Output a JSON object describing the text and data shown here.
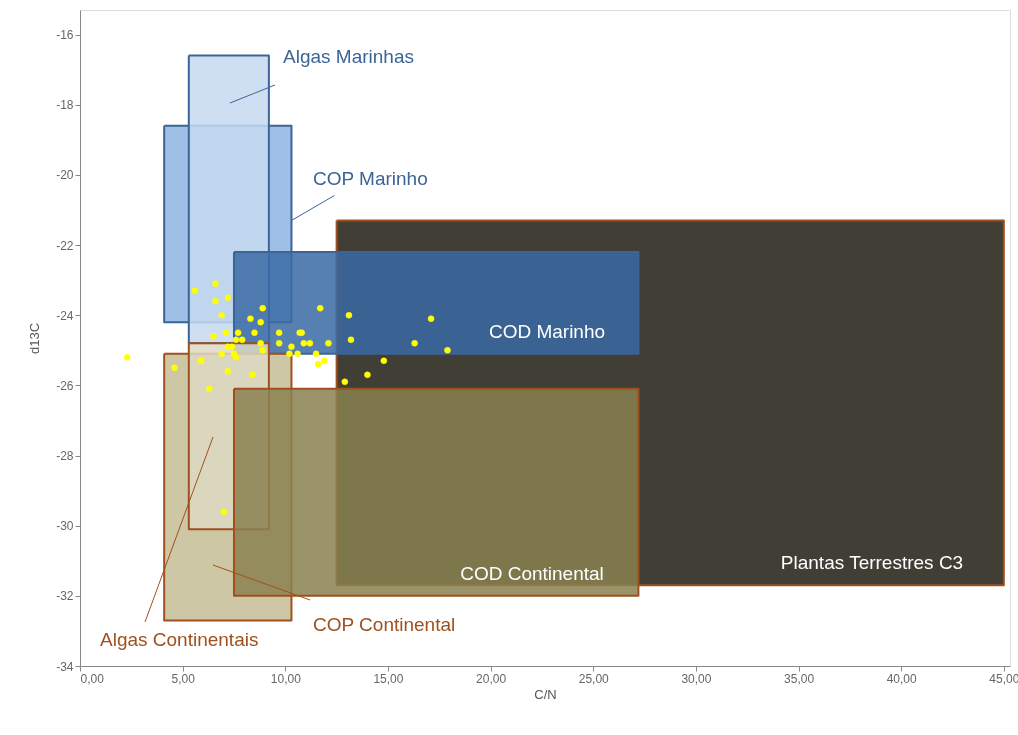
{
  "chart_data": {
    "type": "area",
    "xlabel": "C/N",
    "ylabel": "d13C",
    "xlim": [
      0,
      45.3
    ],
    "ylim": [
      -34,
      -15.3
    ],
    "xticks": [
      {
        "value": 0,
        "label": "0,00"
      },
      {
        "value": 5,
        "label": "5,00"
      },
      {
        "value": 10,
        "label": "10,00"
      },
      {
        "value": 15,
        "label": "15,00"
      },
      {
        "value": 20,
        "label": "20,00"
      },
      {
        "value": 25,
        "label": "25,00"
      },
      {
        "value": 30,
        "label": "30,00"
      },
      {
        "value": 35,
        "label": "35,00"
      },
      {
        "value": 40,
        "label": "40,00"
      },
      {
        "value": 45,
        "label": "45,00"
      }
    ],
    "yticks": [
      -34,
      -32,
      -30,
      -28,
      -26,
      -24,
      -22,
      -20,
      -18,
      -16
    ],
    "grid": false,
    "series": [
      {
        "color": "#8db4e2",
        "x": [
          4.1,
          10.3,
          10.3,
          4.1,
          4.1
        ],
        "values": [
          -18.6,
          -18.6,
          -24.2,
          -24.2,
          -18.6
        ]
      },
      {
        "color": "#c6d9f0",
        "x": [
          5.3,
          9.2,
          9.2,
          5.3,
          5.3
        ],
        "values": [
          -16.6,
          -16.6,
          -24.8,
          -24.8,
          -16.6
        ]
      },
      {
        "color": "#1f1c12",
        "x": [
          12.5,
          45,
          45,
          12.5,
          12.5
        ],
        "values": [
          -21.3,
          -21.3,
          -31.7,
          -31.7,
          -21.3
        ]
      },
      {
        "color": "#3a6aa5",
        "x": [
          7.5,
          27.2,
          27.2,
          7.5,
          7.5
        ],
        "values": [
          -22.2,
          -22.2,
          -25.1,
          -25.1,
          -22.2
        ]
      },
      {
        "color": "#c4bd97",
        "x": [
          4.1,
          10.3,
          10.3,
          4.1,
          4.1
        ],
        "values": [
          -25.1,
          -25.1,
          -32.7,
          -32.7,
          -25.1
        ]
      },
      {
        "color": "#ddd9c3",
        "x": [
          5.3,
          9.2,
          9.2,
          5.3,
          5.3
        ],
        "values": [
          -24.8,
          -24.8,
          -30.1,
          -30.1,
          -24.8
        ]
      },
      {
        "color": "#8a8150",
        "x": [
          7.5,
          27.2,
          27.2,
          7.5,
          7.5
        ],
        "values": [
          -26.1,
          -26.1,
          -32,
          -32,
          -26.1
        ]
      },
      {
        "type": "scatter",
        "color": "#ffff00",
        "marker": "circle",
        "x": [
          2.3,
          4.6,
          5.6,
          6.6,
          6.6,
          7.2,
          6.9,
          6.5,
          7.1,
          7.7,
          7.6,
          7.9,
          7.2,
          7.4,
          7.5,
          7.6,
          6.9,
          5.9,
          7.2,
          8.4,
          6.3,
          7.0,
          8.3,
          8.9,
          8.8,
          8.5,
          8.8,
          8.9,
          9.7,
          9.7,
          10.3,
          10.2,
          10.6,
          10.7,
          10.8,
          10.9,
          11.2,
          11.5,
          12.1,
          11.7,
          11.6,
          11.9,
          13.1,
          13.2,
          12.9,
          14.8,
          14.0,
          16.3,
          17.1,
          17.9
        ],
        "values": [
          -25.2,
          -25.5,
          -23.3,
          -23.1,
          -23.6,
          -23.5,
          -24.0,
          -24.6,
          -24.5,
          -24.5,
          -24.7,
          -24.7,
          -24.9,
          -24.9,
          -25.1,
          -25.2,
          -25.1,
          -25.3,
          -25.6,
          -25.7,
          -26.1,
          -29.6,
          -24.1,
          -23.8,
          -24.2,
          -24.5,
          -24.8,
          -25.0,
          -24.5,
          -24.8,
          -24.9,
          -25.1,
          -25.1,
          -24.5,
          -24.5,
          -24.8,
          -24.8,
          -25.1,
          -24.8,
          -23.8,
          -25.4,
          -25.3,
          -24.0,
          -24.7,
          -25.9,
          -25.3,
          -25.7,
          -24.8,
          -24.1,
          -25.0
        ]
      }
    ],
    "annotations": [
      "Algas Marinhas",
      {
        "text": "COP Marinho",
        "x": 10.3,
        "y": -21.3
      },
      "COD Marinho",
      "Plantas Terrestres C3",
      "COD Continental",
      "COP Continental",
      "Algas Continentais"
    ]
  }
}
